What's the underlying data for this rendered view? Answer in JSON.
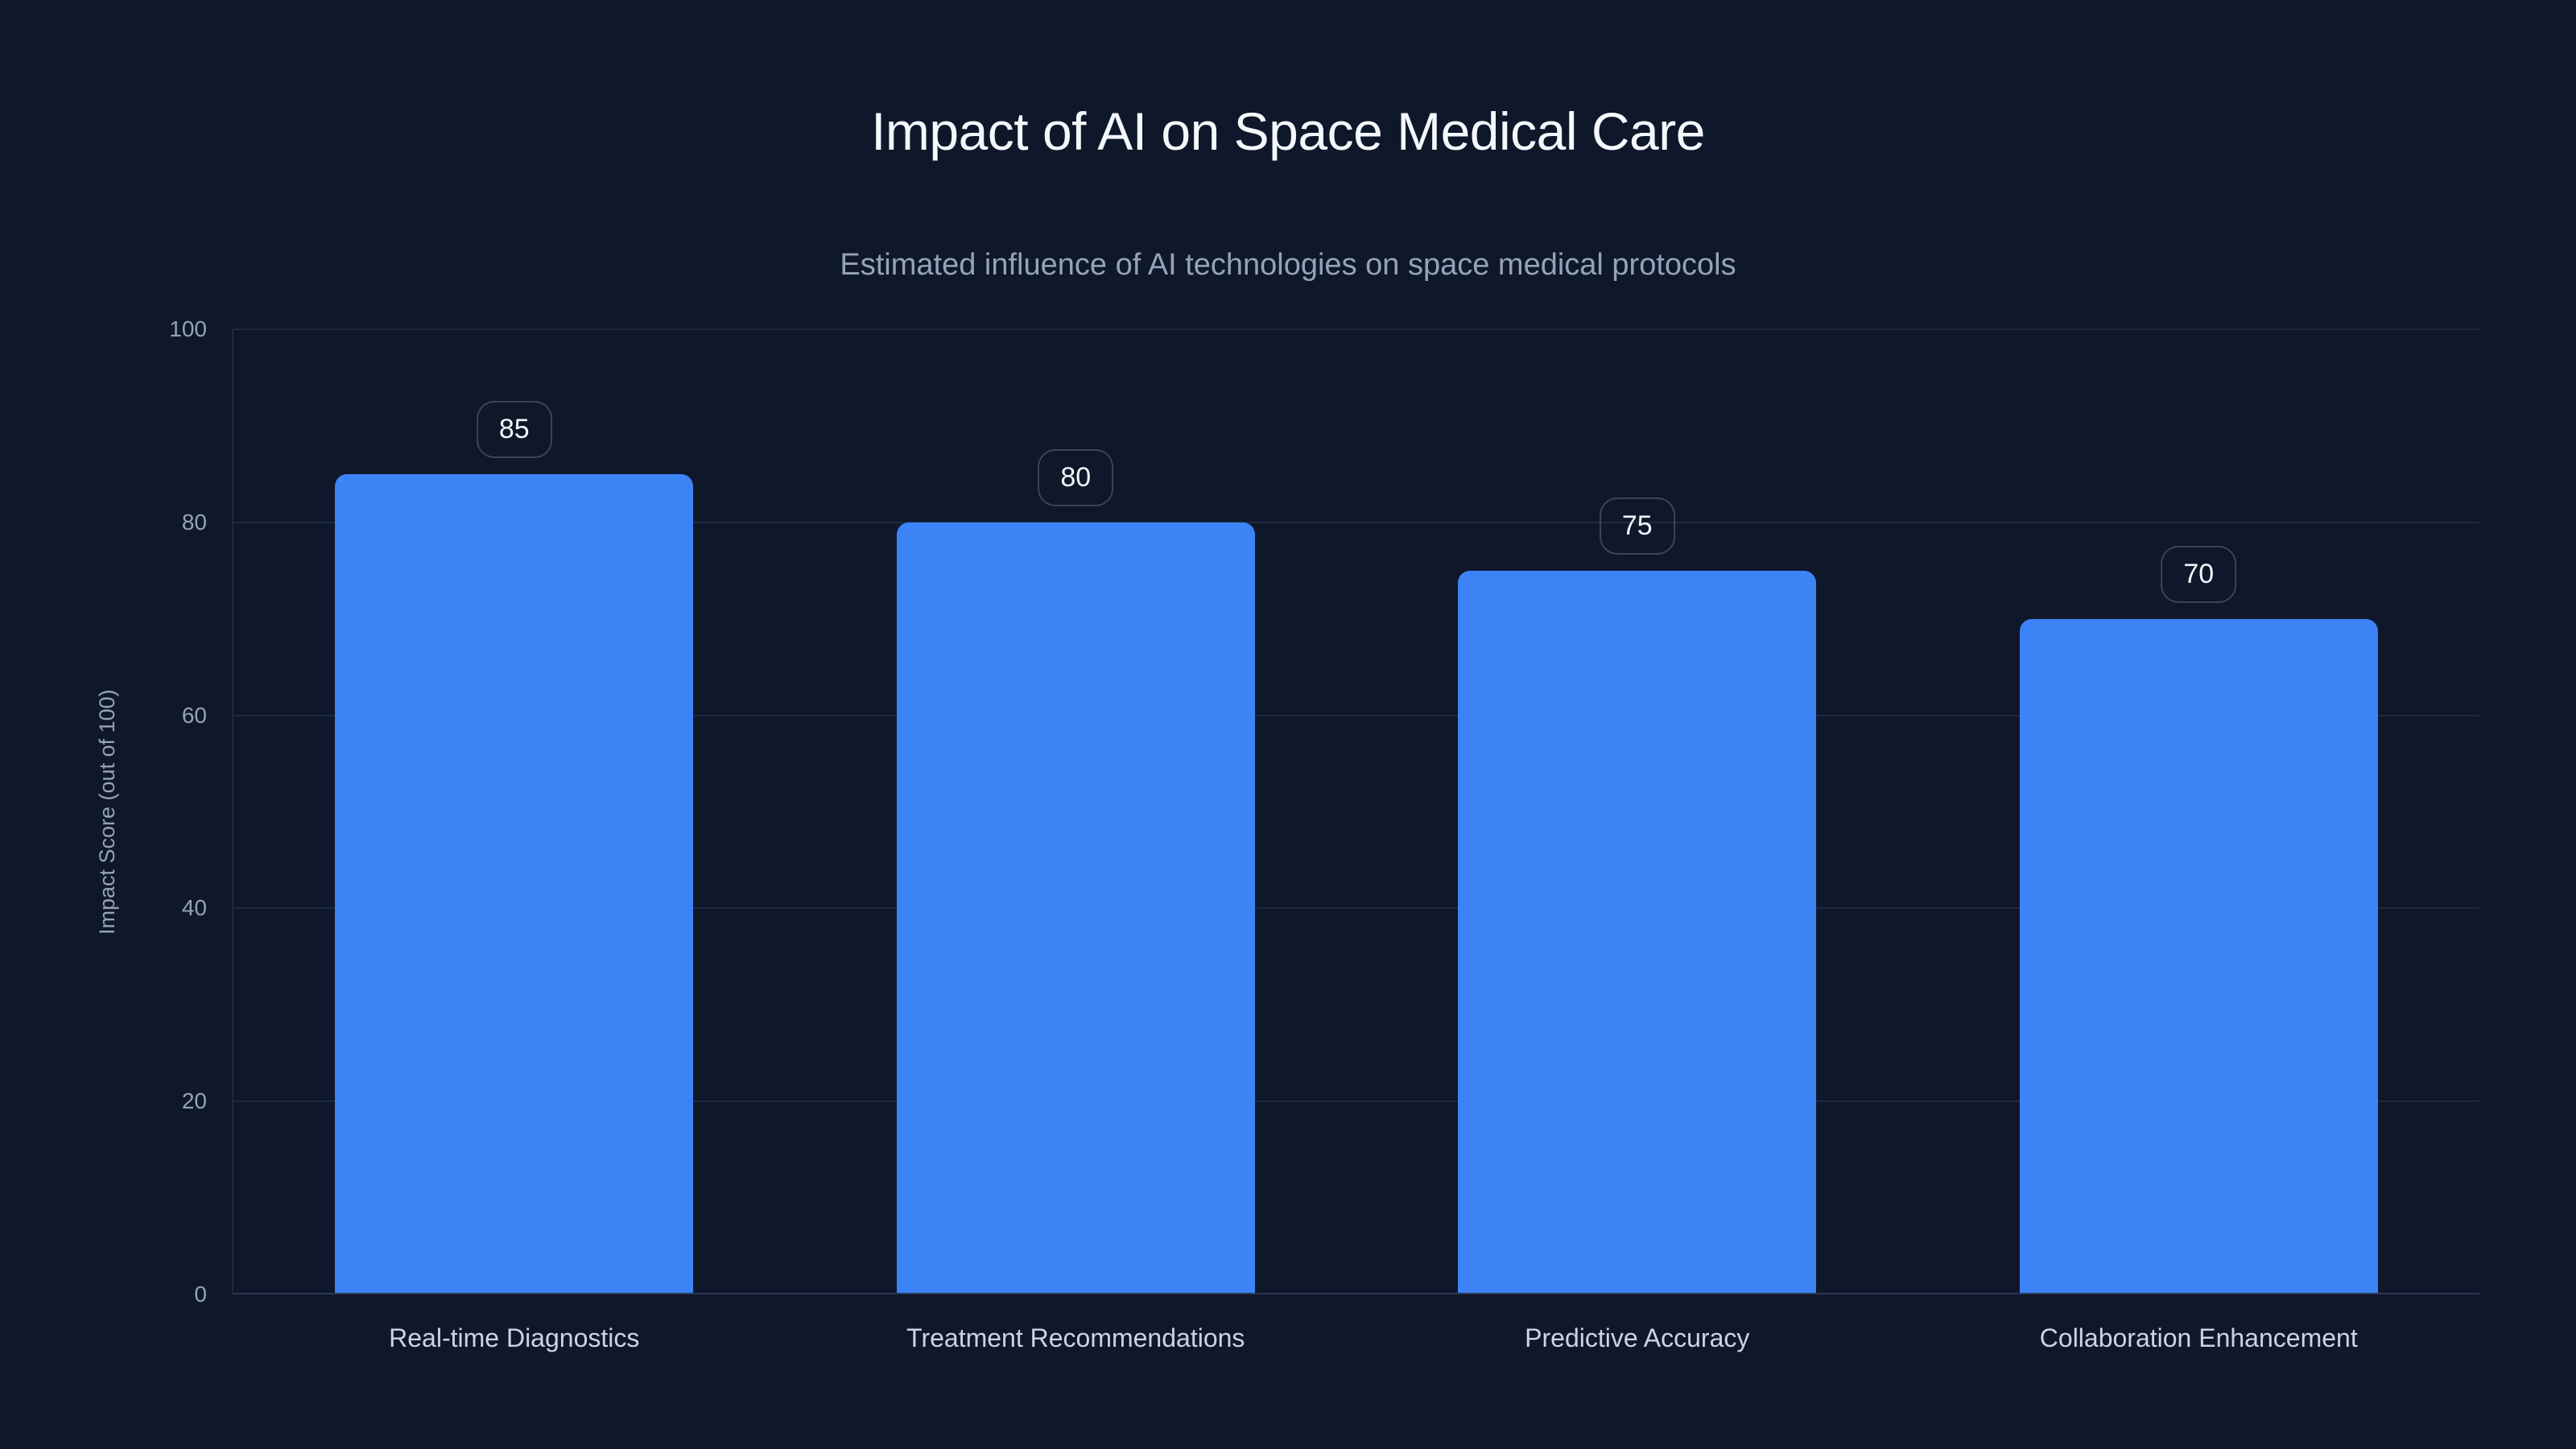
{
  "chart_data": {
    "type": "bar",
    "title": "Impact of AI on Space Medical Care",
    "subtitle": "Estimated influence of AI technologies on space medical protocols",
    "categories": [
      "Real-time Diagnostics",
      "Treatment Recommendations",
      "Predictive Accuracy",
      "Collaboration Enhancement"
    ],
    "values": [
      85,
      80,
      75,
      70
    ],
    "value_labels": [
      "85",
      "80",
      "75",
      "70"
    ],
    "xlabel": "",
    "ylabel": "Impact Score (out of 100)",
    "ylim": [
      0,
      100
    ],
    "yticks": [
      0,
      20,
      40,
      60,
      80,
      100
    ],
    "grid": true,
    "legend": false,
    "bar_color": "#3c83f6"
  },
  "colors": {
    "background": "#0f172a",
    "bar": "#3c83f6",
    "gridline": "#1f2a41",
    "axis_line": "#2b3852",
    "title": "#f4f7fb",
    "subtitle": "#94a3b8",
    "tick_label": "#94a3b8",
    "category_label": "#cbd5e1",
    "badge_border": "#3a4557",
    "badge_text": "#f1f5f9"
  }
}
